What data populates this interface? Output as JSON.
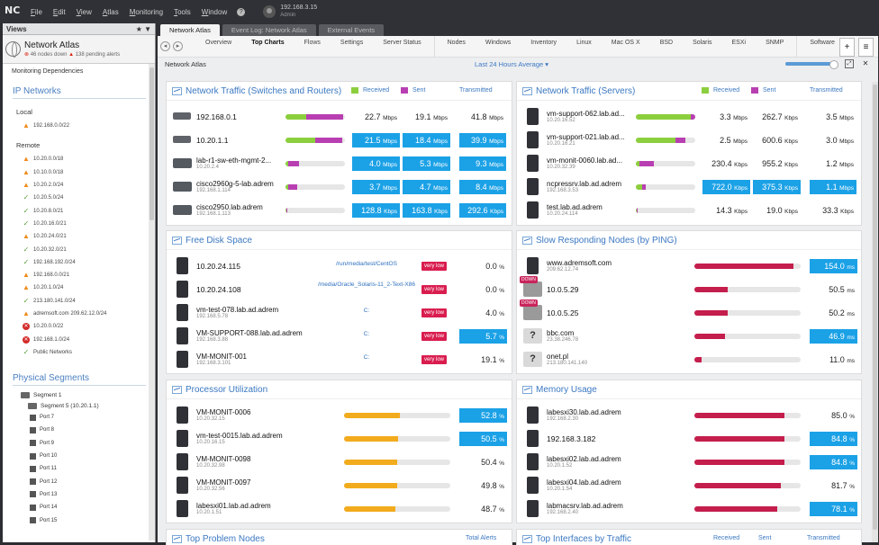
{
  "titlebar": {
    "logo": "NC",
    "menu": [
      "File",
      "Edit",
      "View",
      "Atlas",
      "Monitoring",
      "Tools",
      "Window"
    ],
    "user_host": "192.168.3.15",
    "user_role": "Admin"
  },
  "sidebar": {
    "views_label": "Views",
    "views_icons": "★ ▼",
    "atlas_name": "Network Atlas",
    "atlas_down": "46 nodes down",
    "atlas_pending": "138 pending alerts",
    "dependencies": "Monitoring Dependencies",
    "ip_networks_label": "IP Networks",
    "local_label": "Local",
    "local": [
      {
        "name": "192.168.0.0/22",
        "status": "warn"
      }
    ],
    "remote_label": "Remote",
    "remote": [
      {
        "name": "10.20.0.0/18",
        "status": "warn"
      },
      {
        "name": "10.10.0.0/18",
        "status": "warn"
      },
      {
        "name": "10.20.2.0/24",
        "status": "warn"
      },
      {
        "name": "10.20.5.0/24",
        "status": "ok"
      },
      {
        "name": "10.20.8.0/21",
        "status": "ok"
      },
      {
        "name": "10.20.16.0/21",
        "status": "ok"
      },
      {
        "name": "10.20.24.0/21",
        "status": "warn"
      },
      {
        "name": "10.20.32.0/21",
        "status": "ok"
      },
      {
        "name": "192.168.192.0/24",
        "status": "ok"
      },
      {
        "name": "192.168.0.0/21",
        "status": "warn"
      },
      {
        "name": "10.20.1.0/24",
        "status": "warn"
      },
      {
        "name": "213.180.141.0/24",
        "status": "ok"
      },
      {
        "name": "adremsoft.com 209.62.12.0/24",
        "status": "warn"
      },
      {
        "name": "10.20.0.0/22",
        "status": "err"
      },
      {
        "name": "192.168.1.0/24",
        "status": "err"
      },
      {
        "name": "Public Networks",
        "status": "ok"
      }
    ],
    "physical_label": "Physical Segments",
    "segments": [
      "Segment 1",
      "Segment 5 (10.20.1.1)"
    ],
    "ports": [
      "Port 7",
      "Port 8",
      "Port 9",
      "Port 10",
      "Port 11",
      "Port 12",
      "Port 13",
      "Port 14",
      "Port 15"
    ]
  },
  "doctabs": [
    "Network Atlas",
    "Event Log: Network Atlas",
    "External Events"
  ],
  "subtabs": [
    "Overview",
    "Top Charts",
    "Flows",
    "Settings",
    "Server Status",
    "Nodes",
    "Windows",
    "Inventory",
    "Linux",
    "Mac OS X",
    "BSD",
    "Solaris",
    "ESXi",
    "SNMP",
    "Software"
  ],
  "toolbar": {
    "add": "+",
    "menu": "≡",
    "back": "◂",
    "fwd": "▸"
  },
  "dashbar": {
    "crumb": "Network Atlas",
    "range": "Last 24 Hours Average ▾",
    "full": "⤢",
    "exit": "✕"
  },
  "colors": {
    "accent": "#3b78c2",
    "received": "#8ccf3e",
    "sent": "#b83fb2",
    "highlight": "#1ba1e6"
  },
  "traffic_switches": {
    "title": "Network Traffic (Switches and Routers)",
    "legend": [
      "Received",
      "Sent",
      "Transmitted"
    ],
    "rows": [
      {
        "name": "192.168.0.1",
        "ip": "",
        "icon": "router",
        "recv": 0.35,
        "sent": 0.62,
        "v1": "22.7",
        "u1": "Mbps",
        "v2": "19.1",
        "u2": "Mbps",
        "v3": "41.8",
        "u3": "Mbps",
        "hl": [
          0,
          0,
          0
        ]
      },
      {
        "name": "10.20.1.1",
        "ip": "",
        "icon": "router",
        "recv": 0.5,
        "sent": 0.45,
        "v1": "21.5",
        "u1": "Mbps",
        "v2": "18.4",
        "u2": "Mbps",
        "v3": "39.9",
        "u3": "Mbps",
        "hl": [
          1,
          1,
          1
        ]
      },
      {
        "name": "lab-r1-sw-eth-mgmt-2...",
        "ip": "10.20.2.4",
        "icon": "switch",
        "recv": 0.04,
        "sent": 0.18,
        "v1": "4.0",
        "u1": "Mbps",
        "v2": "5.3",
        "u2": "Mbps",
        "v3": "9.3",
        "u3": "Mbps",
        "hl": [
          1,
          1,
          1
        ]
      },
      {
        "name": "cisco2960g-5-lab.adrem",
        "ip": "192.168.1.114",
        "icon": "switch",
        "recv": 0.04,
        "sent": 0.16,
        "v1": "3.7",
        "u1": "Mbps",
        "v2": "4.7",
        "u2": "Mbps",
        "v3": "8.4",
        "u3": "Mbps",
        "hl": [
          1,
          1,
          1
        ]
      },
      {
        "name": "cisco2950.lab.adrem",
        "ip": "192.168.1.113",
        "icon": "switch",
        "recv": 0.01,
        "sent": 0.02,
        "v1": "128.8",
        "u1": "Kbps",
        "v2": "163.8",
        "u2": "Kbps",
        "v3": "292.6",
        "u3": "Kbps",
        "hl": [
          1,
          1,
          1
        ]
      }
    ]
  },
  "traffic_servers": {
    "title": "Network Traffic (Servers)",
    "legend": [
      "Received",
      "Sent",
      "Transmitted"
    ],
    "rows": [
      {
        "name": "vm-support-062.lab.ad...",
        "ip": "10.20.16.52",
        "icon": "server",
        "recv": 0.92,
        "sent": 0.08,
        "v1": "3.3",
        "u1": "Mbps",
        "v2": "262.7",
        "u2": "Kbps",
        "v3": "3.5",
        "u3": "Mbps",
        "hl": [
          0,
          0,
          0
        ]
      },
      {
        "name": "vm-support-021.lab.ad...",
        "ip": "10.20.16.21",
        "icon": "server",
        "recv": 0.66,
        "sent": 0.18,
        "v1": "2.5",
        "u1": "Mbps",
        "v2": "600.6",
        "u2": "Kbps",
        "v3": "3.0",
        "u3": "Mbps",
        "hl": [
          0,
          0,
          0
        ]
      },
      {
        "name": "vm-monit-0060.lab.ad...",
        "ip": "10.20.32.39",
        "icon": "server",
        "recv": 0.06,
        "sent": 0.24,
        "v1": "230.4",
        "u1": "Kbps",
        "v2": "955.2",
        "u2": "Kbps",
        "v3": "1.2",
        "u3": "Mbps",
        "hl": [
          0,
          0,
          0
        ]
      },
      {
        "name": "ncpressrv.lab.ad.adrem",
        "ip": "192.168.3.53",
        "icon": "server",
        "recv": 0.1,
        "sent": 0.06,
        "v1": "722.0",
        "u1": "Kbps",
        "v2": "375.3",
        "u2": "Kbps",
        "v3": "1.1",
        "u3": "Mbps",
        "hl": [
          1,
          1,
          1
        ]
      },
      {
        "name": "test.lab.ad.adrem",
        "ip": "10.20.24.114",
        "icon": "server",
        "recv": 0.02,
        "sent": 0.01,
        "v1": "14.3",
        "u1": "Kbps",
        "v2": "19.0",
        "u2": "Kbps",
        "v3": "33.3",
        "u3": "Kbps",
        "hl": [
          0,
          0,
          0
        ]
      }
    ]
  },
  "disk": {
    "title": "Free Disk Space",
    "rows": [
      {
        "name": "10.20.24.115",
        "ip": "",
        "path": "/run/media/test/CentOS",
        "badge": "very low",
        "value": "0.0",
        "unit": "%",
        "hl": 0
      },
      {
        "name": "10.20.24.108",
        "ip": "",
        "path": "/media/Oracle_Solaris-11_2-Text-X86",
        "badge": "very low",
        "value": "0.0",
        "unit": "%",
        "hl": 0
      },
      {
        "name": "vm-test-078.lab.ad.adrem",
        "ip": "192.168.5.78",
        "path": "C:",
        "badge": "very low",
        "value": "4.0",
        "unit": "%",
        "hl": 0
      },
      {
        "name": "VM-SUPPORT-088.lab.ad.adrem",
        "ip": "192.168.3.88",
        "path": "C:",
        "badge": "very low",
        "value": "5.7",
        "unit": "%",
        "hl": 1
      },
      {
        "name": "VM-MONIT-001",
        "ip": "192.168.3.101",
        "path": "C:",
        "badge": "very low",
        "value": "19.1",
        "unit": "%",
        "hl": 0
      }
    ]
  },
  "ping": {
    "title": "Slow Responding Nodes (by PING)",
    "rows": [
      {
        "name": "www.adremsoft.com",
        "ip": "209.62.12.74",
        "icon": "server",
        "down": "",
        "level": 0.93,
        "value": "154.0",
        "unit": "ms",
        "hl": 1
      },
      {
        "name": "10.0.5.29",
        "ip": "",
        "icon": "down",
        "down": "DOWN",
        "level": 0.31,
        "value": "50.5",
        "unit": "ms",
        "hl": 0
      },
      {
        "name": "10.0.5.25",
        "ip": "",
        "icon": "down",
        "down": "DOWN",
        "level": 0.31,
        "value": "50.2",
        "unit": "ms",
        "hl": 0
      },
      {
        "name": "bbc.com",
        "ip": "23.38.246.78",
        "icon": "unk",
        "down": "",
        "level": 0.29,
        "value": "46.9",
        "unit": "ms",
        "hl": 1
      },
      {
        "name": "onet.pl",
        "ip": "213.180.141.140",
        "icon": "unk",
        "down": "",
        "level": 0.07,
        "value": "11.0",
        "unit": "ms",
        "hl": 0
      }
    ]
  },
  "cpu": {
    "title": "Processor Utilization",
    "rows": [
      {
        "name": "VM-MONIT-0006",
        "ip": "10.20.32.15",
        "value": "52.8",
        "unit": "%",
        "level": 0.528,
        "hl": 1
      },
      {
        "name": "vm-test-0015.lab.ad.adrem",
        "ip": "10.20.16.15",
        "value": "50.5",
        "unit": "%",
        "level": 0.505,
        "hl": 1
      },
      {
        "name": "VM-MONIT-0098",
        "ip": "10.20.32.98",
        "value": "50.4",
        "unit": "%",
        "level": 0.504,
        "hl": 0
      },
      {
        "name": "VM-MONIT-0097",
        "ip": "10.20.32.56",
        "value": "49.8",
        "unit": "%",
        "level": 0.498,
        "hl": 0
      },
      {
        "name": "labesxi01.lab.ad.adrem",
        "ip": "10.20.1.51",
        "value": "48.7",
        "unit": "%",
        "level": 0.487,
        "hl": 0
      }
    ]
  },
  "memory": {
    "title": "Memory Usage",
    "rows": [
      {
        "name": "labesxi30.lab.ad.adrem",
        "ip": "192.168.2.30",
        "value": "85.0",
        "unit": "%",
        "level": 0.85,
        "hl": 0
      },
      {
        "name": "192.168.3.182",
        "ip": "",
        "value": "84.8",
        "unit": "%",
        "level": 0.848,
        "hl": 1
      },
      {
        "name": "labesxi02.lab.ad.adrem",
        "ip": "10.20.1.52",
        "value": "84.8",
        "unit": "%",
        "level": 0.848,
        "hl": 1
      },
      {
        "name": "labesxi04.lab.ad.adrem",
        "ip": "10.20.1.54",
        "value": "81.7",
        "unit": "%",
        "level": 0.817,
        "hl": 0
      },
      {
        "name": "labmacsrv.lab.ad.adrem",
        "ip": "192.168.2.40",
        "value": "78.1",
        "unit": "%",
        "level": 0.781,
        "hl": 1
      }
    ]
  },
  "bottom": {
    "problems_title": "Top Problem Nodes",
    "problems_col": "Total Alerts",
    "interfaces_title": "Top Interfaces by Traffic",
    "interfaces_cols": [
      "Received",
      "Sent",
      "Transmitted"
    ]
  }
}
